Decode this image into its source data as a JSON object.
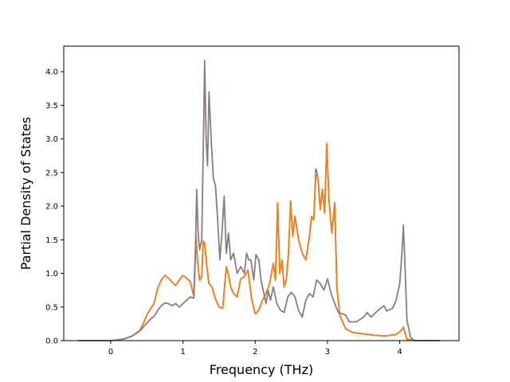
{
  "chart_data": {
    "type": "line",
    "title": "",
    "xlabel": "Frequency (THz)",
    "ylabel": "Partial Density of States",
    "xlim": [
      -0.65,
      4.82
    ],
    "ylim": [
      0,
      4.38
    ],
    "xticks": [
      0,
      1,
      2,
      3,
      4
    ],
    "yticks": [
      0.0,
      0.5,
      1.0,
      1.5,
      2.0,
      2.5,
      3.0,
      3.5,
      4.0
    ],
    "xtick_labels": [
      "0",
      "1",
      "2",
      "3",
      "4"
    ],
    "ytick_labels": [
      "0.0",
      "0.5",
      "1.0",
      "1.5",
      "2.0",
      "2.5",
      "3.0",
      "3.5",
      "4.0"
    ],
    "grid": false,
    "legend": false,
    "series": [
      {
        "color": "#1f77b4",
        "points": [
          [
            -0.45,
            0
          ],
          [
            0,
            0
          ],
          [
            0.1,
            0.01
          ],
          [
            0.2,
            0.03
          ],
          [
            0.3,
            0.07
          ],
          [
            0.4,
            0.15
          ],
          [
            0.45,
            0.25
          ],
          [
            0.5,
            0.38
          ],
          [
            0.55,
            0.47
          ],
          [
            0.6,
            0.55
          ],
          [
            0.65,
            0.78
          ],
          [
            0.7,
            0.9
          ],
          [
            0.75,
            0.97
          ],
          [
            0.8,
            0.93
          ],
          [
            0.85,
            0.87
          ],
          [
            0.9,
            0.82
          ],
          [
            0.95,
            0.9
          ],
          [
            1.0,
            0.97
          ],
          [
            1.05,
            0.93
          ],
          [
            1.1,
            0.88
          ],
          [
            1.15,
            0.66
          ],
          [
            1.18,
            1.55
          ],
          [
            1.2,
            1.2
          ],
          [
            1.23,
            0.9
          ],
          [
            1.26,
            0.95
          ],
          [
            1.28,
            1.48
          ],
          [
            1.3,
            1.45
          ],
          [
            1.33,
            1.1
          ],
          [
            1.36,
            0.85
          ],
          [
            1.4,
            0.8
          ],
          [
            1.45,
            0.62
          ],
          [
            1.5,
            0.5
          ],
          [
            1.55,
            0.48
          ],
          [
            1.6,
            1.1
          ],
          [
            1.63,
            0.98
          ],
          [
            1.66,
            0.8
          ],
          [
            1.7,
            0.7
          ],
          [
            1.75,
            0.65
          ],
          [
            1.8,
            0.92
          ],
          [
            1.85,
            0.95
          ],
          [
            1.9,
            1.05
          ],
          [
            1.95,
            0.62
          ],
          [
            2.0,
            0.4
          ],
          [
            2.05,
            0.45
          ],
          [
            2.1,
            0.6
          ],
          [
            2.15,
            0.7
          ],
          [
            2.2,
            0.85
          ],
          [
            2.25,
            1.15
          ],
          [
            2.28,
            0.9
          ],
          [
            2.31,
            2.05
          ],
          [
            2.34,
            1.0
          ],
          [
            2.37,
            1.2
          ],
          [
            2.4,
            0.8
          ],
          [
            2.43,
            0.9
          ],
          [
            2.46,
            1.3
          ],
          [
            2.49,
            2.08
          ],
          [
            2.52,
            1.55
          ],
          [
            2.55,
            1.85
          ],
          [
            2.6,
            1.5
          ],
          [
            2.65,
            1.3
          ],
          [
            2.7,
            1.2
          ],
          [
            2.75,
            1.55
          ],
          [
            2.78,
            1.85
          ],
          [
            2.81,
            1.8
          ],
          [
            2.84,
            2.55
          ],
          [
            2.87,
            2.4
          ],
          [
            2.9,
            1.95
          ],
          [
            2.93,
            2.25
          ],
          [
            2.96,
            1.9
          ],
          [
            2.99,
            2.93
          ],
          [
            3.02,
            2.1
          ],
          [
            3.06,
            1.6
          ],
          [
            3.1,
            2.05
          ],
          [
            3.13,
            0.8
          ],
          [
            3.17,
            0.38
          ],
          [
            3.25,
            0.18
          ],
          [
            3.35,
            0.12
          ],
          [
            3.5,
            0.1
          ],
          [
            3.65,
            0.08
          ],
          [
            3.8,
            0.07
          ],
          [
            3.95,
            0.09
          ],
          [
            4.02,
            0.15
          ],
          [
            4.05,
            0.2
          ],
          [
            4.1,
            0.02
          ],
          [
            4.2,
            0
          ],
          [
            4.55,
            0
          ]
        ]
      },
      {
        "color": "#ff7f0e",
        "points": [
          [
            -0.45,
            0
          ],
          [
            0,
            0
          ],
          [
            0.1,
            0.01
          ],
          [
            0.2,
            0.03
          ],
          [
            0.3,
            0.07
          ],
          [
            0.4,
            0.15
          ],
          [
            0.45,
            0.25
          ],
          [
            0.5,
            0.38
          ],
          [
            0.55,
            0.47
          ],
          [
            0.6,
            0.55
          ],
          [
            0.65,
            0.78
          ],
          [
            0.7,
            0.9
          ],
          [
            0.75,
            0.97
          ],
          [
            0.8,
            0.93
          ],
          [
            0.85,
            0.87
          ],
          [
            0.9,
            0.82
          ],
          [
            0.95,
            0.9
          ],
          [
            1.0,
            0.97
          ],
          [
            1.05,
            0.93
          ],
          [
            1.1,
            0.88
          ],
          [
            1.15,
            0.66
          ],
          [
            1.18,
            1.55
          ],
          [
            1.2,
            1.2
          ],
          [
            1.23,
            0.9
          ],
          [
            1.26,
            0.95
          ],
          [
            1.28,
            1.48
          ],
          [
            1.3,
            1.45
          ],
          [
            1.33,
            1.1
          ],
          [
            1.36,
            0.85
          ],
          [
            1.4,
            0.8
          ],
          [
            1.45,
            0.62
          ],
          [
            1.5,
            0.5
          ],
          [
            1.55,
            0.48
          ],
          [
            1.6,
            1.1
          ],
          [
            1.63,
            0.98
          ],
          [
            1.66,
            0.8
          ],
          [
            1.7,
            0.7
          ],
          [
            1.75,
            0.65
          ],
          [
            1.8,
            0.92
          ],
          [
            1.85,
            0.95
          ],
          [
            1.9,
            1.05
          ],
          [
            1.95,
            0.62
          ],
          [
            2.0,
            0.4
          ],
          [
            2.05,
            0.45
          ],
          [
            2.1,
            0.6
          ],
          [
            2.15,
            0.7
          ],
          [
            2.2,
            0.85
          ],
          [
            2.25,
            1.15
          ],
          [
            2.28,
            0.9
          ],
          [
            2.31,
            2.05
          ],
          [
            2.34,
            1.0
          ],
          [
            2.37,
            1.2
          ],
          [
            2.4,
            0.8
          ],
          [
            2.43,
            0.9
          ],
          [
            2.46,
            1.3
          ],
          [
            2.49,
            2.08
          ],
          [
            2.52,
            1.55
          ],
          [
            2.55,
            1.85
          ],
          [
            2.6,
            1.5
          ],
          [
            2.65,
            1.3
          ],
          [
            2.7,
            1.2
          ],
          [
            2.75,
            1.55
          ],
          [
            2.78,
            1.85
          ],
          [
            2.81,
            1.8
          ],
          [
            2.84,
            2.5
          ],
          [
            2.87,
            2.4
          ],
          [
            2.9,
            1.95
          ],
          [
            2.93,
            2.25
          ],
          [
            2.96,
            1.9
          ],
          [
            2.99,
            2.93
          ],
          [
            3.02,
            2.1
          ],
          [
            3.06,
            1.6
          ],
          [
            3.1,
            2.05
          ],
          [
            3.13,
            0.8
          ],
          [
            3.17,
            0.38
          ],
          [
            3.25,
            0.18
          ],
          [
            3.35,
            0.12
          ],
          [
            3.5,
            0.1
          ],
          [
            3.65,
            0.08
          ],
          [
            3.8,
            0.07
          ],
          [
            3.95,
            0.09
          ],
          [
            4.02,
            0.15
          ],
          [
            4.05,
            0.2
          ],
          [
            4.1,
            0.02
          ],
          [
            4.2,
            0
          ],
          [
            4.55,
            0
          ]
        ]
      },
      {
        "color": "#8c7c82",
        "points": [
          [
            -0.45,
            0
          ],
          [
            0,
            0
          ],
          [
            0.1,
            0.01
          ],
          [
            0.2,
            0.03
          ],
          [
            0.3,
            0.07
          ],
          [
            0.4,
            0.14
          ],
          [
            0.45,
            0.2
          ],
          [
            0.5,
            0.26
          ],
          [
            0.55,
            0.32
          ],
          [
            0.6,
            0.36
          ],
          [
            0.65,
            0.45
          ],
          [
            0.7,
            0.52
          ],
          [
            0.75,
            0.56
          ],
          [
            0.8,
            0.55
          ],
          [
            0.85,
            0.52
          ],
          [
            0.9,
            0.55
          ],
          [
            0.95,
            0.5
          ],
          [
            1.0,
            0.55
          ],
          [
            1.05,
            0.6
          ],
          [
            1.1,
            0.65
          ],
          [
            1.15,
            0.63
          ],
          [
            1.17,
            1.2
          ],
          [
            1.19,
            2.25
          ],
          [
            1.21,
            1.6
          ],
          [
            1.23,
            1.35
          ],
          [
            1.26,
            1.5
          ],
          [
            1.28,
            2.8
          ],
          [
            1.3,
            4.17
          ],
          [
            1.32,
            3.0
          ],
          [
            1.34,
            2.6
          ],
          [
            1.36,
            3.7
          ],
          [
            1.39,
            3.0
          ],
          [
            1.42,
            2.42
          ],
          [
            1.45,
            2.3
          ],
          [
            1.48,
            1.8
          ],
          [
            1.51,
            1.2
          ],
          [
            1.54,
            1.6
          ],
          [
            1.57,
            2.15
          ],
          [
            1.6,
            1.3
          ],
          [
            1.63,
            1.6
          ],
          [
            1.66,
            1.2
          ],
          [
            1.7,
            1.3
          ],
          [
            1.75,
            1.0
          ],
          [
            1.8,
            1.1
          ],
          [
            1.85,
            1.0
          ],
          [
            1.88,
            1.3
          ],
          [
            1.91,
            1.2
          ],
          [
            1.94,
            1.2
          ],
          [
            1.98,
            0.9
          ],
          [
            2.01,
            1.28
          ],
          [
            2.05,
            1.2
          ],
          [
            2.08,
            0.9
          ],
          [
            2.12,
            0.7
          ],
          [
            2.15,
            0.55
          ],
          [
            2.18,
            0.75
          ],
          [
            2.21,
            0.6
          ],
          [
            2.25,
            0.8
          ],
          [
            2.3,
            0.55
          ],
          [
            2.35,
            0.45
          ],
          [
            2.4,
            0.42
          ],
          [
            2.45,
            0.65
          ],
          [
            2.5,
            0.72
          ],
          [
            2.55,
            0.65
          ],
          [
            2.6,
            0.45
          ],
          [
            2.65,
            0.35
          ],
          [
            2.7,
            0.6
          ],
          [
            2.75,
            0.7
          ],
          [
            2.8,
            0.65
          ],
          [
            2.85,
            0.9
          ],
          [
            2.9,
            0.85
          ],
          [
            2.95,
            0.75
          ],
          [
            3.0,
            0.92
          ],
          [
            3.05,
            0.7
          ],
          [
            3.1,
            0.55
          ],
          [
            3.15,
            0.42
          ],
          [
            3.2,
            0.4
          ],
          [
            3.25,
            0.38
          ],
          [
            3.3,
            0.28
          ],
          [
            3.4,
            0.28
          ],
          [
            3.5,
            0.35
          ],
          [
            3.55,
            0.42
          ],
          [
            3.6,
            0.35
          ],
          [
            3.7,
            0.45
          ],
          [
            3.78,
            0.52
          ],
          [
            3.82,
            0.44
          ],
          [
            3.9,
            0.48
          ],
          [
            3.95,
            0.6
          ],
          [
            4.0,
            0.85
          ],
          [
            4.03,
            1.3
          ],
          [
            4.05,
            1.72
          ],
          [
            4.07,
            1.2
          ],
          [
            4.1,
            0.3
          ],
          [
            4.15,
            0.05
          ],
          [
            4.2,
            0
          ],
          [
            4.55,
            0
          ]
        ]
      }
    ]
  }
}
